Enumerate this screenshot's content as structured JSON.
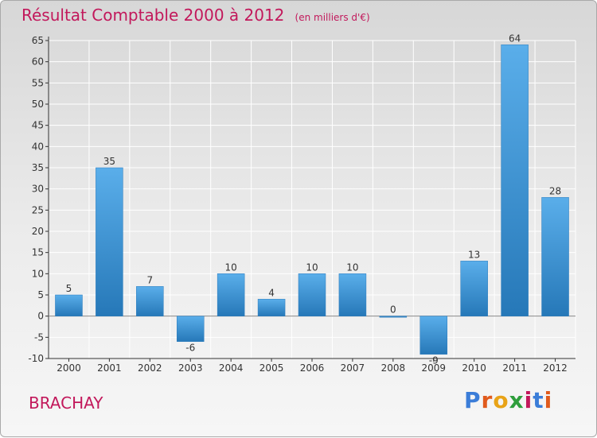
{
  "title": "Résultat Comptable 2000 à 2012",
  "subtitle": "(en milliers d'€)",
  "place": "BRACHAY",
  "logo": {
    "text": "Proxiti",
    "letters": [
      "P",
      "r",
      "o",
      "x",
      "i",
      "t",
      "i"
    ],
    "colors": [
      "#3b7dd8",
      "#e05a1c",
      "#e8a317",
      "#2e9e3c",
      "#c2185b",
      "#3b7dd8",
      "#e05a1c"
    ]
  },
  "colors": {
    "accent": "#c2185b",
    "bar_light": "#5aaeea",
    "bar_dark": "#2678b8",
    "grid": "#ffffff",
    "axis": "#333333"
  },
  "chart_data": {
    "type": "bar",
    "title": "Résultat Comptable 2000 à 2012",
    "subtitle": "(en milliers d'€)",
    "xlabel": "",
    "ylabel": "",
    "ylim": [
      -10,
      65
    ],
    "yticks": [
      -10,
      -5,
      0,
      5,
      10,
      15,
      20,
      25,
      30,
      35,
      40,
      45,
      50,
      55,
      60,
      65
    ],
    "categories": [
      "2000",
      "2001",
      "2002",
      "2003",
      "2004",
      "2005",
      "2006",
      "2007",
      "2008",
      "2009",
      "2010",
      "2011",
      "2012"
    ],
    "values": [
      5,
      35,
      7,
      -6,
      10,
      4,
      10,
      10,
      0,
      -9,
      13,
      64,
      28
    ],
    "grid": true
  }
}
